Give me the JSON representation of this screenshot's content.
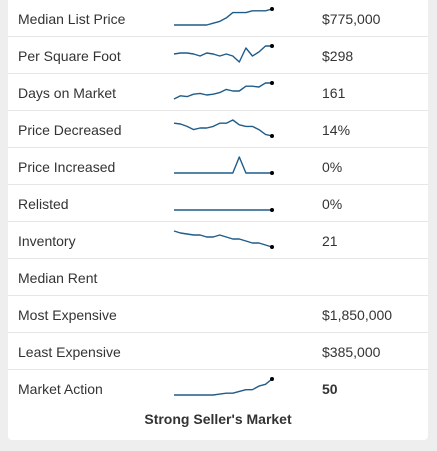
{
  "metrics": [
    {
      "name": "median-list-price",
      "label": "Median List Price",
      "value": "$775,000",
      "bold": false,
      "trend": [
        10,
        10,
        10,
        10,
        10,
        10,
        11,
        12,
        14,
        17,
        17,
        17,
        18,
        18,
        18,
        19
      ]
    },
    {
      "name": "per-square-foot",
      "label": "Per Square Foot",
      "value": "$298",
      "bold": false,
      "trend": [
        10,
        10.5,
        10.5,
        10,
        9,
        10.5,
        10,
        9,
        10,
        9,
        6,
        13,
        9,
        11,
        14,
        14
      ]
    },
    {
      "name": "days-on-market",
      "label": "Days on Market",
      "value": "161",
      "bold": false,
      "trend": [
        2,
        4,
        3.5,
        5,
        5.5,
        4.5,
        5,
        6,
        8,
        7,
        7,
        10,
        10,
        9.5,
        12,
        12
      ]
    },
    {
      "name": "price-decreased",
      "label": "Price Decreased",
      "value": "14%",
      "bold": false,
      "trend": [
        14,
        13.5,
        12,
        10,
        11,
        11,
        12,
        14,
        14,
        16,
        13,
        12,
        12,
        10,
        7,
        6
      ]
    },
    {
      "name": "price-increased",
      "label": "Price Increased",
      "value": "0%",
      "bold": false,
      "trend": [
        0,
        0,
        0,
        0,
        0,
        0,
        0,
        0,
        0,
        0,
        10,
        0,
        0,
        0,
        0,
        0
      ]
    },
    {
      "name": "relisted",
      "label": "Relisted",
      "value": "0%",
      "bold": false,
      "trend": [
        0,
        0,
        0,
        0,
        0,
        0,
        0,
        0,
        0,
        0,
        0,
        0,
        0,
        0,
        0,
        0
      ]
    },
    {
      "name": "inventory",
      "label": "Inventory",
      "value": "21",
      "bold": false,
      "trend": [
        15,
        14,
        13.5,
        13,
        13,
        12,
        12,
        13,
        12,
        11,
        11,
        10,
        9,
        9,
        8,
        7
      ]
    },
    {
      "name": "median-rent",
      "label": "Median Rent",
      "value": "",
      "bold": false,
      "trend": null
    },
    {
      "name": "most-expensive",
      "label": "Most Expensive",
      "value": "$1,850,000",
      "bold": false,
      "trend": null
    },
    {
      "name": "least-expensive",
      "label": "Least Expensive",
      "value": "$385,000",
      "bold": false,
      "trend": null
    },
    {
      "name": "market-action",
      "label": "Market Action",
      "value": "50",
      "bold": true,
      "trend": [
        1,
        1,
        1,
        1,
        1,
        1,
        1,
        1.5,
        2,
        2,
        3,
        4,
        4,
        6,
        7,
        10
      ]
    }
  ],
  "market_summary": "Strong Seller's Market",
  "colors": {
    "sparkline": "#1f5c8a",
    "endpoint": "#000000",
    "divider": "#e6e6e6",
    "page_background": "#eeeeee"
  }
}
